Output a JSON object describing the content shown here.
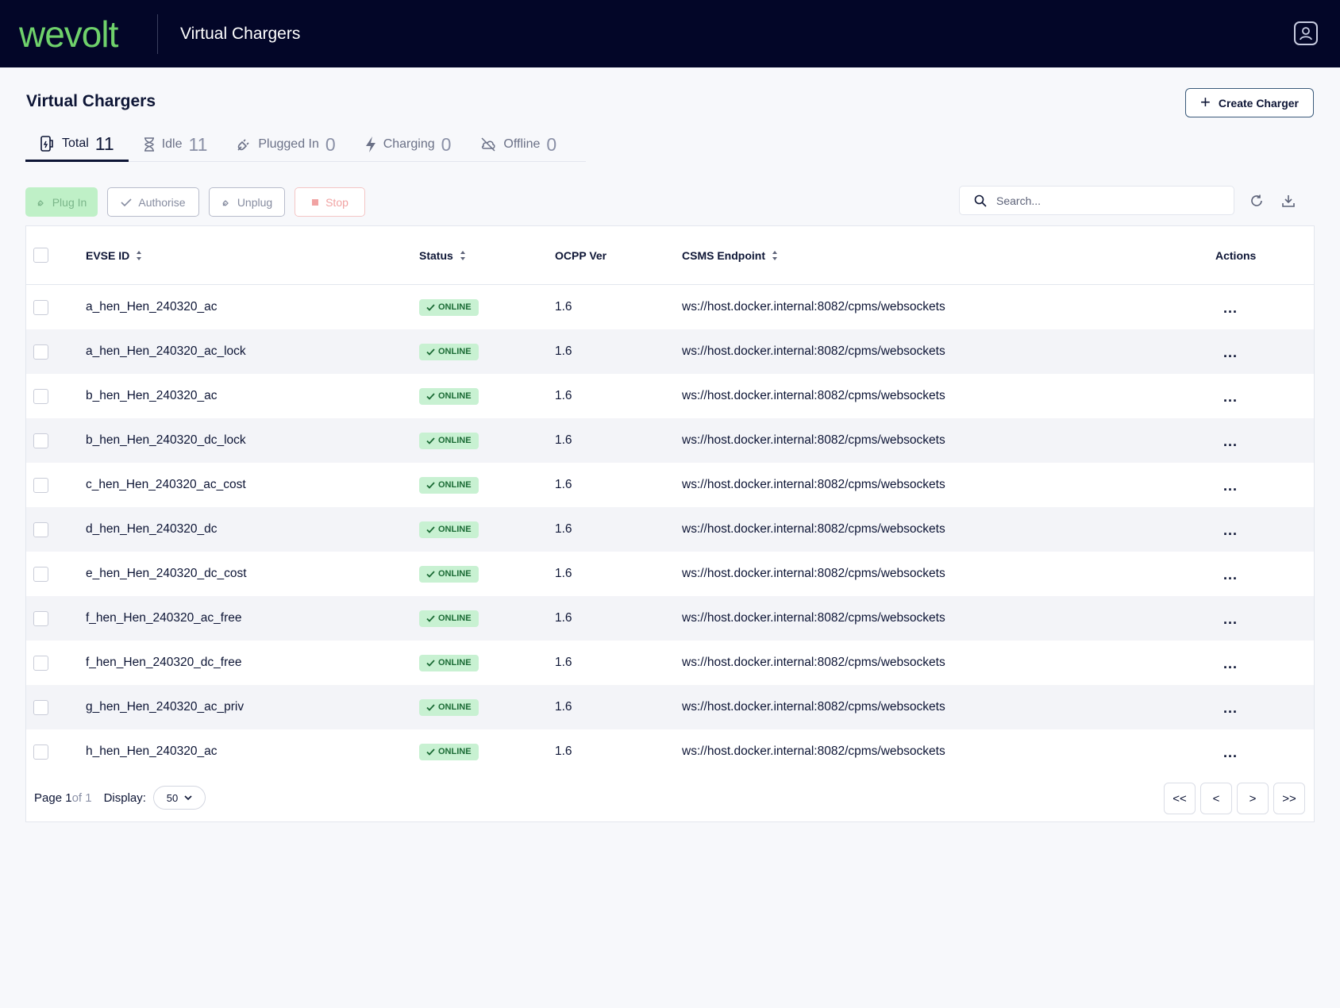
{
  "header": {
    "logo_text": "wevolt",
    "app_title": "Virtual Chargers",
    "user_icon": "user-account-icon"
  },
  "page": {
    "title": "Virtual Chargers",
    "create_label": "Create Charger"
  },
  "tabs": [
    {
      "label": "Total",
      "count": "11",
      "icon": "charger-icon",
      "active": true
    },
    {
      "label": "Idle",
      "count": "11",
      "icon": "hourglass-icon",
      "active": false
    },
    {
      "label": "Plugged In",
      "count": "0",
      "icon": "plug-icon",
      "active": false
    },
    {
      "label": "Charging",
      "count": "0",
      "icon": "bolt-icon",
      "active": false
    },
    {
      "label": "Offline",
      "count": "0",
      "icon": "cloud-off-icon",
      "active": false
    }
  ],
  "actions": {
    "plug_in": "Plug In",
    "authorise": "Authorise",
    "unplug": "Unplug",
    "stop": "Stop"
  },
  "search": {
    "placeholder": "Search...",
    "value": ""
  },
  "table": {
    "columns": {
      "evse_id": "EVSE ID",
      "status": "Status",
      "ocpp": "OCPP Ver",
      "csms": "CSMS Endpoint",
      "actions": "Actions"
    },
    "rows": [
      {
        "evse_id": "a_hen_Hen_240320_ac",
        "status": "ONLINE",
        "ocpp": "1.6",
        "csms": "ws://host.docker.internal:8082/cpms/websockets",
        "actions": "..."
      },
      {
        "evse_id": "a_hen_Hen_240320_ac_lock",
        "status": "ONLINE",
        "ocpp": "1.6",
        "csms": "ws://host.docker.internal:8082/cpms/websockets",
        "actions": "..."
      },
      {
        "evse_id": "b_hen_Hen_240320_ac",
        "status": "ONLINE",
        "ocpp": "1.6",
        "csms": "ws://host.docker.internal:8082/cpms/websockets",
        "actions": "..."
      },
      {
        "evse_id": "b_hen_Hen_240320_dc_lock",
        "status": "ONLINE",
        "ocpp": "1.6",
        "csms": "ws://host.docker.internal:8082/cpms/websockets",
        "actions": "..."
      },
      {
        "evse_id": "c_hen_Hen_240320_ac_cost",
        "status": "ONLINE",
        "ocpp": "1.6",
        "csms": "ws://host.docker.internal:8082/cpms/websockets",
        "actions": "..."
      },
      {
        "evse_id": "d_hen_Hen_240320_dc",
        "status": "ONLINE",
        "ocpp": "1.6",
        "csms": "ws://host.docker.internal:8082/cpms/websockets",
        "actions": "..."
      },
      {
        "evse_id": "e_hen_Hen_240320_dc_cost",
        "status": "ONLINE",
        "ocpp": "1.6",
        "csms": "ws://host.docker.internal:8082/cpms/websockets",
        "actions": "..."
      },
      {
        "evse_id": "f_hen_Hen_240320_ac_free",
        "status": "ONLINE",
        "ocpp": "1.6",
        "csms": "ws://host.docker.internal:8082/cpms/websockets",
        "actions": "..."
      },
      {
        "evse_id": "f_hen_Hen_240320_dc_free",
        "status": "ONLINE",
        "ocpp": "1.6",
        "csms": "ws://host.docker.internal:8082/cpms/websockets",
        "actions": "..."
      },
      {
        "evse_id": "g_hen_Hen_240320_ac_priv",
        "status": "ONLINE",
        "ocpp": "1.6",
        "csms": "ws://host.docker.internal:8082/cpms/websockets",
        "actions": "..."
      },
      {
        "evse_id": "h_hen_Hen_240320_ac",
        "status": "ONLINE",
        "ocpp": "1.6",
        "csms": "ws://host.docker.internal:8082/cpms/websockets",
        "actions": "..."
      }
    ]
  },
  "pagination": {
    "page_label": "Page",
    "current_page": "1",
    "of_label": "of 1",
    "display_label": "Display:",
    "page_size": "50",
    "first": "<<",
    "prev": "<",
    "next": ">",
    "last": ">>"
  },
  "colors": {
    "topbar": "#030628",
    "brand_green": "#6fd16b",
    "badge_bg": "#c8f1d2",
    "badge_text": "#1b6b35",
    "text": "#0d1535"
  }
}
